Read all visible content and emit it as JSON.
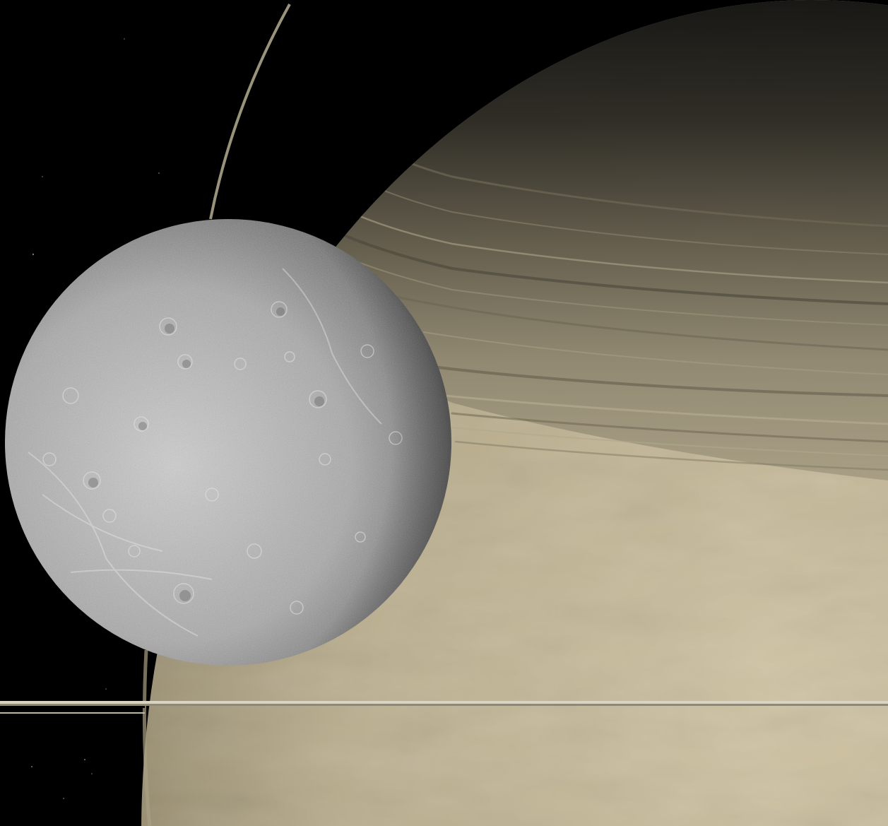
{
  "scene": {
    "subjects": [
      {
        "id": "planet",
        "kind": "gas giant with rings",
        "color": "#c8bc9e"
      },
      {
        "id": "moon",
        "kind": "cratered icy moon",
        "color": "#a8a8a8"
      }
    ],
    "colors": {
      "space": "#000000",
      "planet_light": "#cbbf9f",
      "planet_dark": "#8e8468",
      "ring_dark": "#1c1b17",
      "ring_band": "#9d9478",
      "ring_edge": "#d8d2c0",
      "moon_light": "#c9c9c9",
      "moon_dark": "#3a3a3a"
    }
  }
}
